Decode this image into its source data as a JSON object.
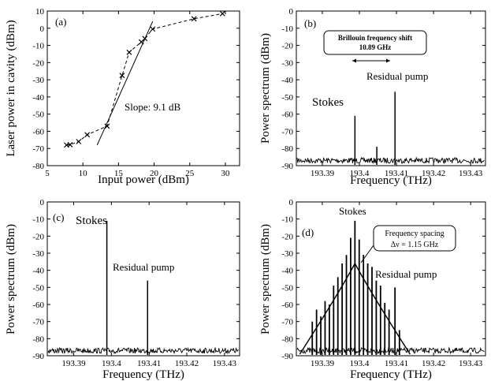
{
  "chart_data": [
    {
      "type": "scatter",
      "label": "(a)",
      "xlabel": "Input power (dBm)",
      "ylabel": "Laser power in cavity (dBm)",
      "xlim": [
        5,
        32
      ],
      "ylim": [
        -80,
        10
      ],
      "xticks": [
        5,
        10,
        15,
        20,
        25,
        30
      ],
      "yticks": [
        10,
        0,
        -10,
        -20,
        -30,
        -40,
        -50,
        -60,
        -70,
        -80
      ],
      "x": [
        7.7,
        8.2,
        9.4,
        10.6,
        13.4,
        15.5,
        16.5,
        18.2,
        18.7,
        19.8,
        25.6,
        29.6
      ],
      "y": [
        -68,
        -67.8,
        -66,
        -62,
        -57,
        -27.5,
        -14,
        -8,
        -6,
        -0.5,
        5.5,
        8.5
      ],
      "fit_line": {
        "x": [
          12,
          19.8
        ],
        "y": [
          -68,
          4
        ]
      },
      "annotation": "Slope: 9.1 dB"
    },
    {
      "type": "line",
      "label": "(b)",
      "xlabel": "Frequency (THz)",
      "ylabel": "Power spectrum (dBm)",
      "xlim": [
        193.383,
        193.434
      ],
      "ylim": [
        -90,
        0
      ],
      "xticks": [
        193.39,
        193.4,
        193.41,
        193.42,
        193.43
      ],
      "yticks": [
        0,
        -10,
        -20,
        -30,
        -40,
        -50,
        -60,
        -70,
        -80,
        -90
      ],
      "noise_floor": -87,
      "peaks": [
        {
          "x": 193.3988,
          "y": -61
        },
        {
          "x": 193.4047,
          "y": -79
        },
        {
          "x": 193.4096,
          "y": -47
        }
      ],
      "box_title": "Brillouin frequency shift",
      "box_value": "10.89 GHz",
      "pump_label": "Residual pump",
      "stokes_label": "Stokes"
    },
    {
      "type": "line",
      "label": "(c)",
      "xlabel": "Frequency (THz)",
      "ylabel": "Power spectrum (dBm)",
      "xlim": [
        193.383,
        193.434
      ],
      "ylim": [
        -90,
        0
      ],
      "xticks": [
        193.39,
        193.4,
        193.41,
        193.42,
        193.43
      ],
      "yticks": [
        0,
        -10,
        -20,
        -30,
        -40,
        -50,
        -60,
        -70,
        -80,
        -90
      ],
      "noise_floor": -87,
      "peaks": [
        {
          "x": 193.3988,
          "y": -11
        },
        {
          "x": 193.4096,
          "y": -46
        }
      ],
      "stokes_label": "Stokes",
      "pump_label": "Residual pump"
    },
    {
      "type": "line",
      "label": "(d)",
      "xlabel": "Frequency (THz)",
      "ylabel": "Power spectrum (dBm)",
      "xlim": [
        193.383,
        193.434
      ],
      "ylim": [
        -90,
        0
      ],
      "xticks": [
        193.39,
        193.4,
        193.41,
        193.42,
        193.43
      ],
      "yticks": [
        0,
        -10,
        -20,
        -30,
        -40,
        -50,
        -60,
        -70,
        -80,
        -90
      ],
      "noise_floor": -87,
      "comb_center": 193.3988,
      "comb_spacing_thz": 0.00115,
      "comb_lines": [
        {
          "x": 193.3873,
          "y": -70
        },
        {
          "x": 193.38845,
          "y": -63
        },
        {
          "x": 193.3896,
          "y": -67
        },
        {
          "x": 193.39075,
          "y": -58
        },
        {
          "x": 193.3919,
          "y": -60
        },
        {
          "x": 193.39305,
          "y": -49
        },
        {
          "x": 193.3942,
          "y": -44
        },
        {
          "x": 193.39535,
          "y": -36
        },
        {
          "x": 193.3965,
          "y": -31
        },
        {
          "x": 193.39765,
          "y": -21
        },
        {
          "x": 193.3988,
          "y": -11
        },
        {
          "x": 193.39995,
          "y": -22
        },
        {
          "x": 193.4011,
          "y": -31
        },
        {
          "x": 193.40225,
          "y": -36
        },
        {
          "x": 193.4034,
          "y": -38
        },
        {
          "x": 193.40455,
          "y": -46
        },
        {
          "x": 193.4057,
          "y": -49
        },
        {
          "x": 193.40685,
          "y": -59
        },
        {
          "x": 193.408,
          "y": -63
        },
        {
          "x": 193.4096,
          "y": -50
        },
        {
          "x": 193.4108,
          "y": -75
        }
      ],
      "box_title": "Frequency spacing",
      "box_value": "Δν = 1.15 GHz",
      "stokes_label": "Stokes",
      "pump_label": "Residual pump"
    }
  ]
}
